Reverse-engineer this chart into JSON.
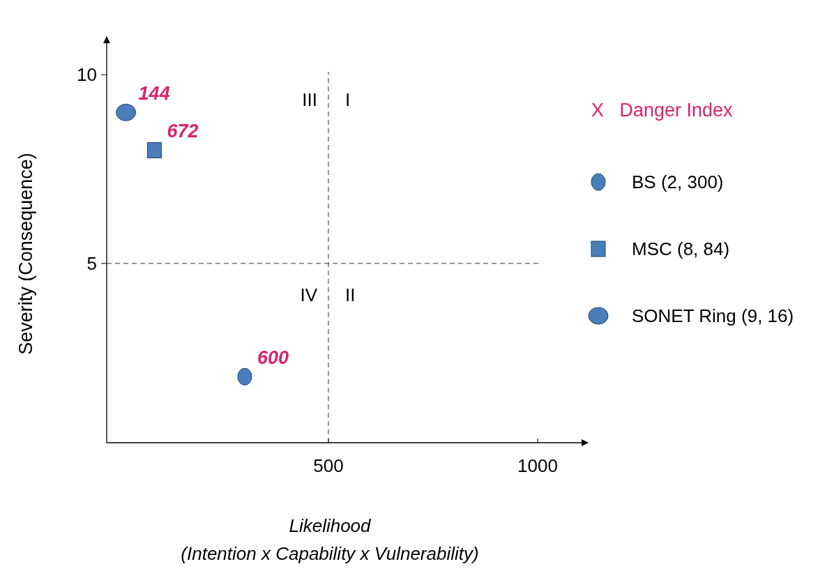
{
  "chart_data": {
    "type": "scatter",
    "xlabel": "Likelihood\n(Intention x Capability x Vulnerability)",
    "ylabel": "Severity (Consequence)",
    "legend_title": "X   Danger Index",
    "legend": "right",
    "xlim": [
      -30,
      1120
    ],
    "ylim": [
      0.25,
      11
    ],
    "xticks": [
      500,
      1000
    ],
    "yticks": [
      5,
      10
    ],
    "grid": false,
    "series": [
      {
        "name": "BS (2, 300)",
        "color": "#4a7ebb",
        "marker": "circle",
        "x": [
          300
        ],
        "values": [
          2
        ]
      },
      {
        "name": "MSC (8, 84)",
        "color": "#4a7ebb",
        "marker": "square",
        "x": [
          84
        ],
        "values": [
          8
        ]
      },
      {
        "name": "SONET Ring (9, 16)",
        "color": "#4a7ebb",
        "marker": "circle",
        "x": [
          16
        ],
        "values": [
          9
        ]
      }
    ],
    "ref_lines": [
      {
        "axis": "x",
        "value": 500,
        "line_style": "dashed"
      },
      {
        "axis": "y",
        "value": 5,
        "line_style": "dashed"
      }
    ],
    "annotations": [
      {
        "text": "600",
        "x": 300,
        "y": 2
      },
      {
        "text": "672",
        "x": 84,
        "y": 8
      },
      {
        "text": "144",
        "x": 16,
        "y": 9
      },
      "III",
      "I",
      "IV",
      "II"
    ]
  }
}
